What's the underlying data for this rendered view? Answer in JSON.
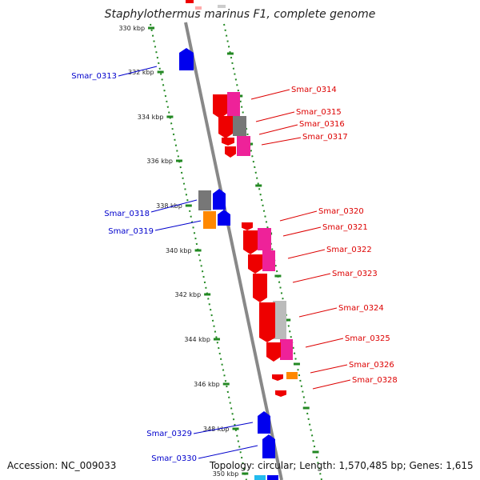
{
  "title": "Staphylothermus marinus F1, complete genome",
  "footer": {
    "accession": "Accession: NC_009033",
    "topology": "Topology: circular; Length: 1,570,485 bp; Genes: 1,615"
  },
  "colors": {
    "forward_label": "#0000cc",
    "reverse_label": "#dd0000",
    "tick": "#228822",
    "backbone": "#888888"
  },
  "ticks": [
    {
      "label": "330 kbp"
    },
    {
      "label": "332 kbp"
    },
    {
      "label": "334 kbp"
    },
    {
      "label": "336 kbp"
    },
    {
      "label": "338 kbp"
    },
    {
      "label": "340 kbp"
    },
    {
      "label": "342 kbp"
    },
    {
      "label": "344 kbp"
    },
    {
      "label": "346 kbp"
    },
    {
      "label": "348 kbp"
    },
    {
      "label": "350 kbp"
    }
  ],
  "genes": [
    {
      "name": "Smar_0313",
      "strand": "forward"
    },
    {
      "name": "Smar_0314",
      "strand": "reverse"
    },
    {
      "name": "Smar_0315",
      "strand": "reverse"
    },
    {
      "name": "Smar_0316",
      "strand": "reverse"
    },
    {
      "name": "Smar_0317",
      "strand": "reverse"
    },
    {
      "name": "Smar_0318",
      "strand": "forward"
    },
    {
      "name": "Smar_0319",
      "strand": "forward"
    },
    {
      "name": "Smar_0320",
      "strand": "reverse"
    },
    {
      "name": "Smar_0321",
      "strand": "reverse"
    },
    {
      "name": "Smar_0322",
      "strand": "reverse"
    },
    {
      "name": "Smar_0323",
      "strand": "reverse"
    },
    {
      "name": "Smar_0324",
      "strand": "reverse"
    },
    {
      "name": "Smar_0325",
      "strand": "reverse"
    },
    {
      "name": "Smar_0326",
      "strand": "reverse"
    },
    {
      "name": "Smar_0328",
      "strand": "reverse"
    },
    {
      "name": "Smar_0329",
      "strand": "forward"
    },
    {
      "name": "Smar_0330",
      "strand": "forward"
    }
  ]
}
